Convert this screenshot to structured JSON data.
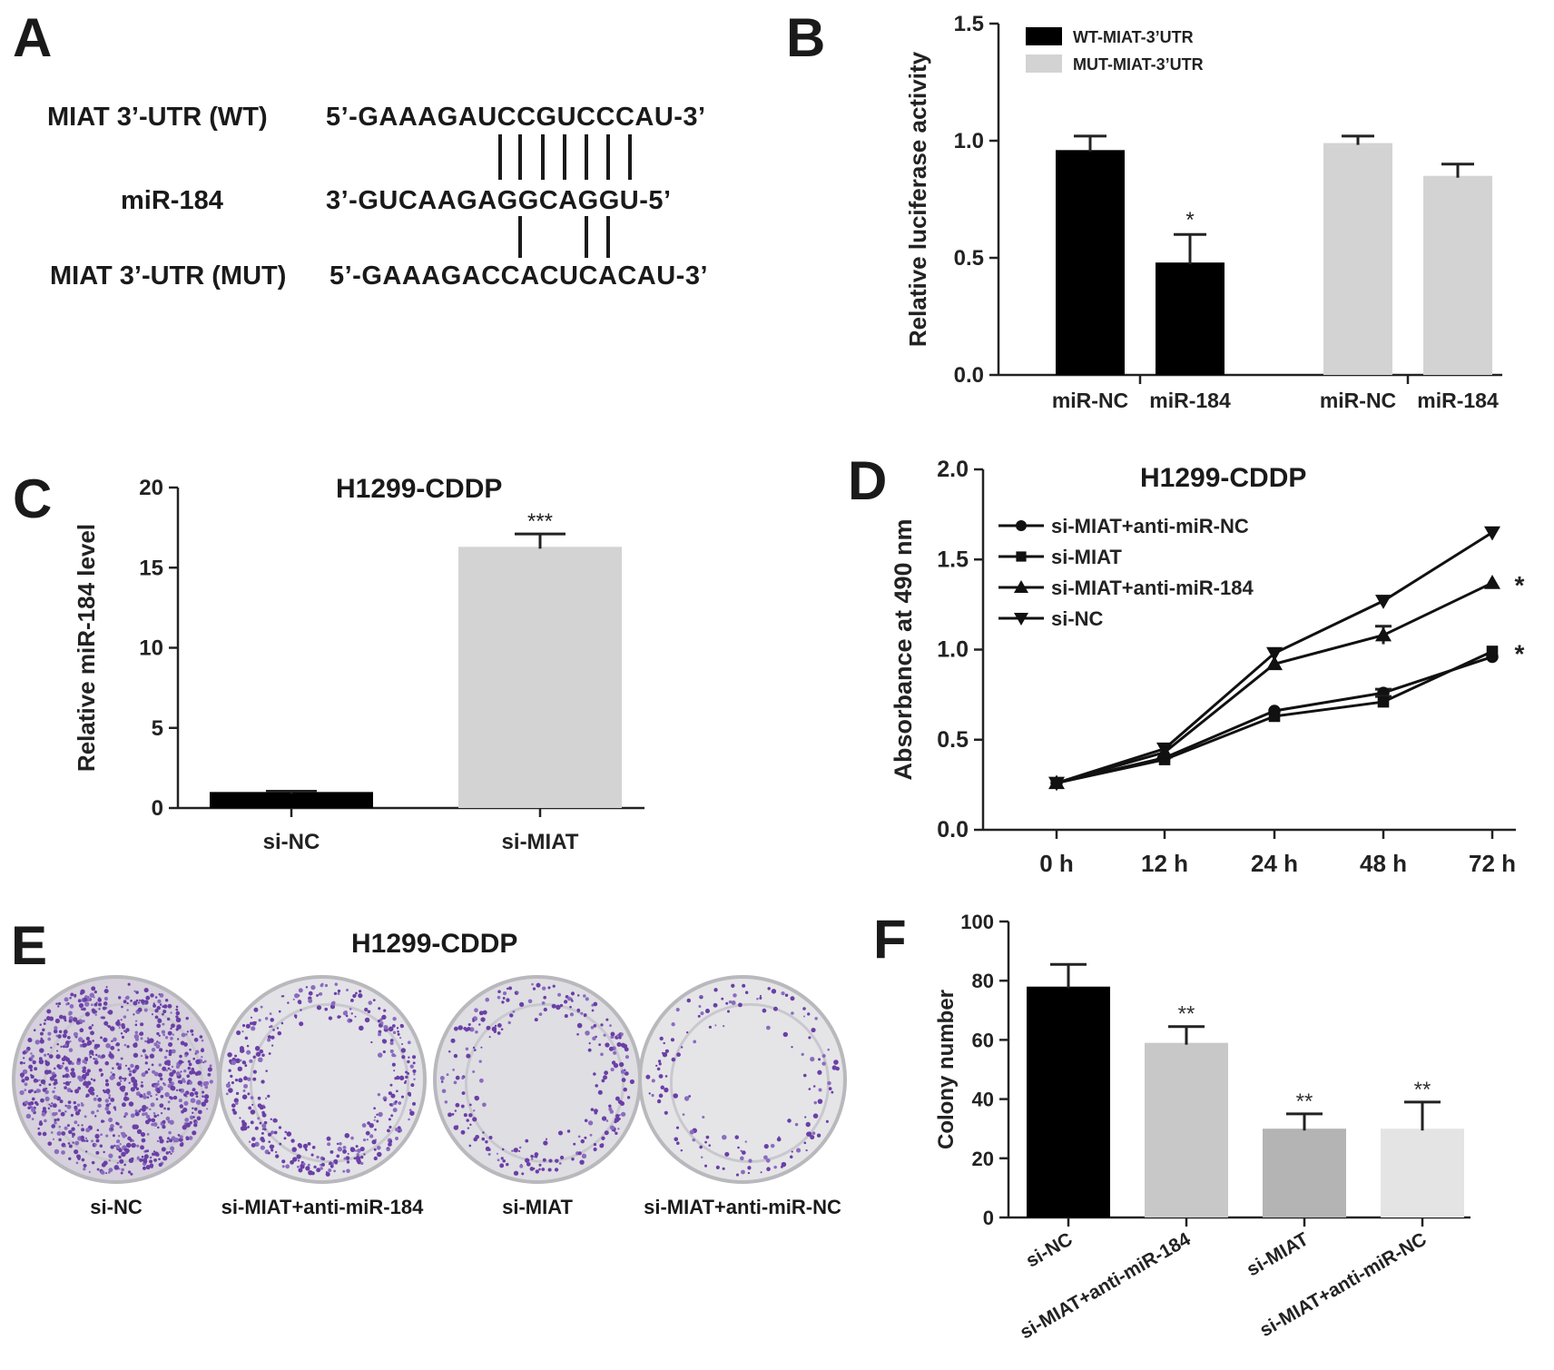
{
  "panels": {
    "A": {
      "letter": "A",
      "wt_label": "MIAT 3’-UTR (WT)",
      "wt_seq": "5’-GAAAGAUCCGUCCCAU-3’",
      "mir_label": "miR-184",
      "mir_seq": "3’-GUCAAGAGGCAGGU-5’",
      "mut_label": "MIAT 3’-UTR (MUT)",
      "mut_seq": "5’-GAAAGACCACUCACAU-3’"
    },
    "B": {
      "letter": "B"
    },
    "C": {
      "letter": "C",
      "title": "H1299-CDDP"
    },
    "D": {
      "letter": "D",
      "title": "H1299-CDDP"
    },
    "E": {
      "letter": "E",
      "title": "H1299-CDDP",
      "dishes": [
        "si-NC",
        "si-MIAT+anti-miR-184",
        "si-MIAT",
        "si-MIAT+anti-miR-NC"
      ]
    },
    "F": {
      "letter": "F"
    }
  },
  "chart_data": [
    {
      "panel": "B",
      "type": "bar",
      "ylabel": "Relative luciferase activity",
      "ylim": [
        0,
        1.5
      ],
      "yticks": [
        "0.0",
        "0.5",
        "1.0",
        "1.5"
      ],
      "groups": [
        {
          "series": "WT-MIAT-3’UTR",
          "categories": [
            "miR-NC",
            "miR-184"
          ],
          "values": [
            0.96,
            0.48
          ],
          "errors": [
            0.06,
            0.12
          ],
          "sig": [
            "",
            "*"
          ]
        },
        {
          "series": "MUT-MIAT-3’UTR",
          "categories": [
            "miR-NC",
            "miR-184"
          ],
          "values": [
            0.99,
            0.85
          ],
          "errors": [
            0.03,
            0.05
          ],
          "sig": [
            "",
            ""
          ]
        }
      ],
      "legend": [
        {
          "name": "WT-MIAT-3’UTR",
          "color": "#000000"
        },
        {
          "name": "MUT-MIAT-3’UTR",
          "color": "#d3d3d3"
        }
      ],
      "legend_position": "top-left"
    },
    {
      "panel": "C",
      "type": "bar",
      "title": "H1299-CDDP",
      "ylabel": "Relative miR-184 level",
      "ylim": [
        0,
        20
      ],
      "yticks": [
        "0",
        "5",
        "10",
        "15",
        "20"
      ],
      "categories": [
        "si-NC",
        "si-MIAT"
      ],
      "values": [
        1.0,
        16.3
      ],
      "errors": [
        0.05,
        0.8
      ],
      "colors": [
        "#000000",
        "#d3d3d3"
      ],
      "sig": [
        "",
        "***"
      ]
    },
    {
      "panel": "D",
      "type": "line",
      "title": "H1299-CDDP",
      "ylabel": "Absorbance at 490 nm",
      "ylim": [
        0,
        2.0
      ],
      "yticks": [
        "0.0",
        "0.5",
        "1.0",
        "1.5",
        "2.0"
      ],
      "x": [
        "0 h",
        "12 h",
        "24 h",
        "48 h",
        "72 h"
      ],
      "series": [
        {
          "name": "si-MIAT+anti-miR-NC",
          "marker": "circle",
          "values": [
            0.26,
            0.4,
            0.66,
            0.76,
            0.96
          ],
          "errors": [
            0,
            0,
            0,
            0.02,
            0
          ]
        },
        {
          "name": "si-MIAT",
          "marker": "square",
          "values": [
            0.26,
            0.39,
            0.63,
            0.71,
            0.99
          ],
          "errors": [
            0,
            0,
            0,
            0.03,
            0
          ]
        },
        {
          "name": "si-MIAT+anti-miR-184",
          "marker": "triangle-up",
          "values": [
            0.26,
            0.43,
            0.92,
            1.08,
            1.37
          ],
          "errors": [
            0,
            0,
            0,
            0.05,
            0
          ]
        },
        {
          "name": "si-NC",
          "marker": "triangle-down",
          "values": [
            0.26,
            0.45,
            0.98,
            1.27,
            1.65
          ],
          "errors": [
            0,
            0,
            0,
            0,
            0
          ]
        }
      ],
      "annotations": [
        {
          "text": "*",
          "series": "si-MIAT+anti-miR-184"
        },
        {
          "text": "*",
          "series": "si-MIAT"
        }
      ],
      "legend_position": "top-left"
    },
    {
      "panel": "F",
      "type": "bar",
      "ylabel": "Colony number",
      "ylim": [
        0,
        100
      ],
      "yticks": [
        "0",
        "20",
        "40",
        "60",
        "80",
        "100"
      ],
      "categories": [
        "si-NC",
        "si-MIAT+anti-miR-184",
        "si-MIAT",
        "si-MIAT+anti-miR-NC"
      ],
      "values": [
        78,
        59,
        30,
        30
      ],
      "errors": [
        7.5,
        5.5,
        5,
        9
      ],
      "colors": [
        "#000000",
        "#c8c8c8",
        "#b4b4b4",
        "#e4e4e4"
      ],
      "sig": [
        "",
        "**",
        "**",
        "**"
      ]
    }
  ]
}
